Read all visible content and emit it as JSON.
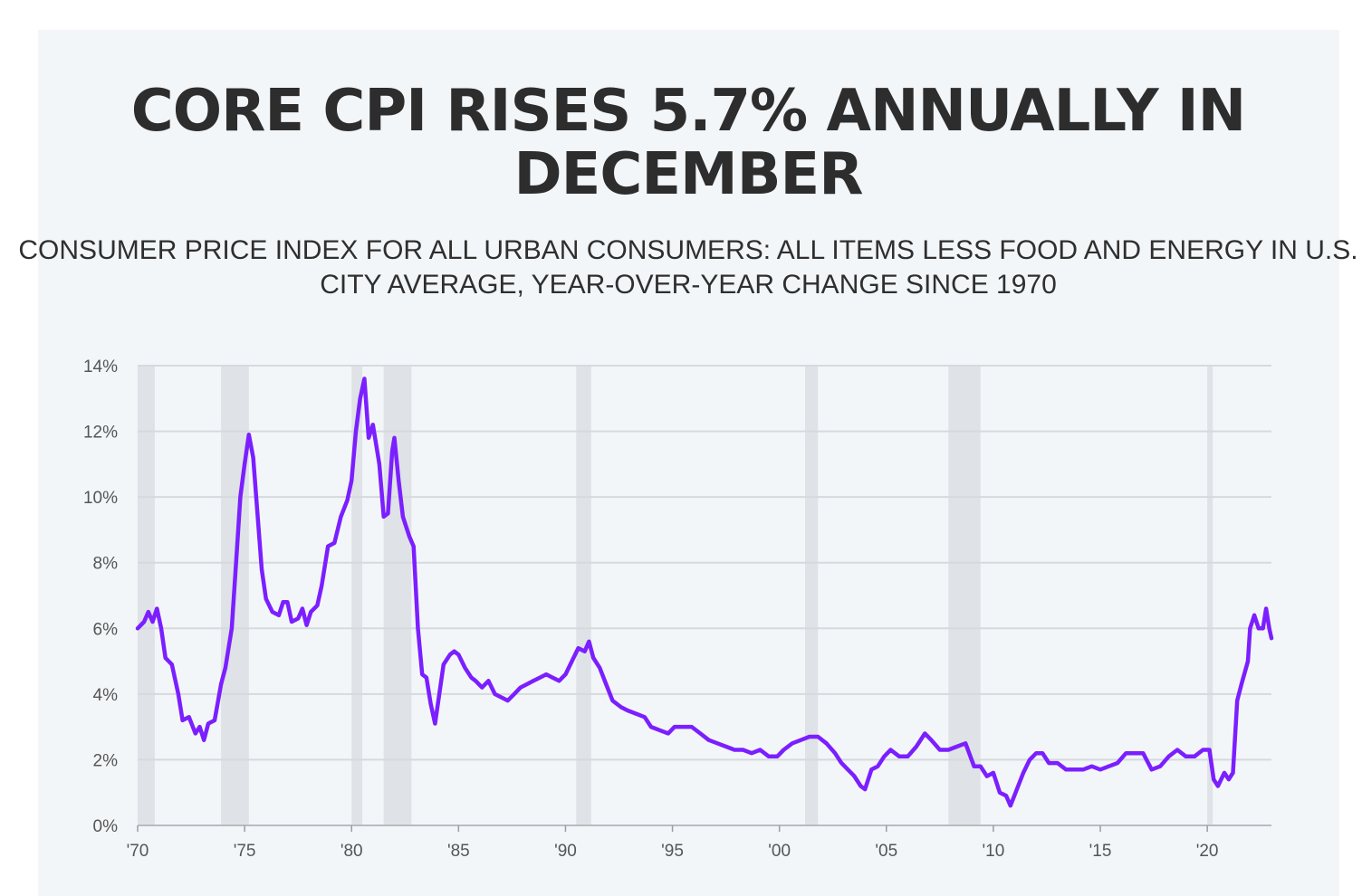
{
  "title": "CORE CPI RISES 5.7% ANNUALLY IN DECEMBER",
  "subtitle": "CONSUMER PRICE INDEX FOR ALL URBAN CONSUMERS: ALL ITEMS LESS FOOD AND ENERGY IN U.S. CITY AVERAGE, YEAR-OVER-YEAR CHANGE SINCE 1970",
  "colors": {
    "line": "#7b1fff",
    "recession": "#dfe2e6",
    "grid": "#d6d9dd",
    "background": "#f3f6f9"
  },
  "chart_data": {
    "type": "line",
    "title": "CORE CPI RISES 5.7% ANNUALLY IN DECEMBER",
    "xlabel": "",
    "ylabel": "",
    "xlim": [
      1970,
      2023
    ],
    "ylim": [
      0,
      14
    ],
    "grid": "horizontal",
    "x_ticks": [
      1970,
      1975,
      1980,
      1985,
      1990,
      1995,
      2000,
      2005,
      2010,
      2015,
      2020
    ],
    "x_tick_labels": [
      "'70",
      "'75",
      "'80",
      "'85",
      "'90",
      "'95",
      "'00",
      "'05",
      "'10",
      "'15",
      "'20"
    ],
    "y_ticks": [
      0,
      2,
      4,
      6,
      8,
      10,
      12,
      14
    ],
    "y_tick_labels": [
      "0%",
      "2%",
      "4%",
      "6%",
      "8%",
      "10%",
      "12%",
      "14%"
    ],
    "recessions": [
      [
        1970.0,
        1970.8
      ],
      [
        1973.9,
        1975.2
      ],
      [
        1980.0,
        1980.5
      ],
      [
        1981.5,
        1982.8
      ],
      [
        1990.5,
        1991.2
      ],
      [
        2001.2,
        2001.8
      ],
      [
        2007.9,
        2009.4
      ],
      [
        2020.0,
        2020.2
      ]
    ],
    "series": [
      {
        "values": [
          [
            1970.0,
            6.0
          ],
          [
            1970.3,
            6.2
          ],
          [
            1970.5,
            6.5
          ],
          [
            1970.7,
            6.2
          ],
          [
            1970.9,
            6.6
          ],
          [
            1971.1,
            6.0
          ],
          [
            1971.3,
            5.1
          ],
          [
            1971.6,
            4.9
          ],
          [
            1971.9,
            4.0
          ],
          [
            1972.1,
            3.2
          ],
          [
            1972.4,
            3.3
          ],
          [
            1972.7,
            2.8
          ],
          [
            1972.9,
            3.0
          ],
          [
            1973.1,
            2.6
          ],
          [
            1973.3,
            3.1
          ],
          [
            1973.6,
            3.2
          ],
          [
            1973.9,
            4.3
          ],
          [
            1974.1,
            4.8
          ],
          [
            1974.4,
            6.0
          ],
          [
            1974.6,
            8.0
          ],
          [
            1974.8,
            10.0
          ],
          [
            1975.0,
            11.0
          ],
          [
            1975.2,
            11.9
          ],
          [
            1975.4,
            11.2
          ],
          [
            1975.6,
            9.5
          ],
          [
            1975.8,
            7.8
          ],
          [
            1976.0,
            6.9
          ],
          [
            1976.3,
            6.5
          ],
          [
            1976.6,
            6.4
          ],
          [
            1976.8,
            6.8
          ],
          [
            1977.0,
            6.8
          ],
          [
            1977.2,
            6.2
          ],
          [
            1977.5,
            6.3
          ],
          [
            1977.7,
            6.6
          ],
          [
            1977.9,
            6.1
          ],
          [
            1978.1,
            6.5
          ],
          [
            1978.4,
            6.7
          ],
          [
            1978.6,
            7.3
          ],
          [
            1978.9,
            8.5
          ],
          [
            1979.2,
            8.6
          ],
          [
            1979.5,
            9.4
          ],
          [
            1979.8,
            9.9
          ],
          [
            1980.0,
            10.5
          ],
          [
            1980.2,
            12.0
          ],
          [
            1980.4,
            13.0
          ],
          [
            1980.6,
            13.6
          ],
          [
            1980.8,
            11.8
          ],
          [
            1981.0,
            12.2
          ],
          [
            1981.3,
            11.0
          ],
          [
            1981.5,
            9.4
          ],
          [
            1981.7,
            9.5
          ],
          [
            1981.9,
            11.4
          ],
          [
            1982.0,
            11.8
          ],
          [
            1982.2,
            10.5
          ],
          [
            1982.4,
            9.4
          ],
          [
            1982.7,
            8.8
          ],
          [
            1982.9,
            8.5
          ],
          [
            1983.1,
            6.0
          ],
          [
            1983.3,
            4.6
          ],
          [
            1983.5,
            4.5
          ],
          [
            1983.7,
            3.7
          ],
          [
            1983.9,
            3.1
          ],
          [
            1984.1,
            4.0
          ],
          [
            1984.3,
            4.9
          ],
          [
            1984.6,
            5.2
          ],
          [
            1984.8,
            5.3
          ],
          [
            1985.0,
            5.2
          ],
          [
            1985.3,
            4.8
          ],
          [
            1985.6,
            4.5
          ],
          [
            1985.8,
            4.4
          ],
          [
            1986.1,
            4.2
          ],
          [
            1986.4,
            4.4
          ],
          [
            1986.7,
            4.0
          ],
          [
            1987.0,
            3.9
          ],
          [
            1987.3,
            3.8
          ],
          [
            1987.6,
            4.0
          ],
          [
            1987.9,
            4.2
          ],
          [
            1988.2,
            4.3
          ],
          [
            1988.5,
            4.4
          ],
          [
            1988.8,
            4.5
          ],
          [
            1989.1,
            4.6
          ],
          [
            1989.4,
            4.5
          ],
          [
            1989.7,
            4.4
          ],
          [
            1990.0,
            4.6
          ],
          [
            1990.3,
            5.0
          ],
          [
            1990.6,
            5.4
          ],
          [
            1990.9,
            5.3
          ],
          [
            1991.1,
            5.6
          ],
          [
            1991.3,
            5.1
          ],
          [
            1991.6,
            4.8
          ],
          [
            1991.9,
            4.3
          ],
          [
            1992.2,
            3.8
          ],
          [
            1992.6,
            3.6
          ],
          [
            1992.9,
            3.5
          ],
          [
            1993.3,
            3.4
          ],
          [
            1993.7,
            3.3
          ],
          [
            1994.0,
            3.0
          ],
          [
            1994.4,
            2.9
          ],
          [
            1994.8,
            2.8
          ],
          [
            1995.1,
            3.0
          ],
          [
            1995.5,
            3.0
          ],
          [
            1995.9,
            3.0
          ],
          [
            1996.3,
            2.8
          ],
          [
            1996.7,
            2.6
          ],
          [
            1997.1,
            2.5
          ],
          [
            1997.5,
            2.4
          ],
          [
            1997.9,
            2.3
          ],
          [
            1998.3,
            2.3
          ],
          [
            1998.7,
            2.2
          ],
          [
            1999.1,
            2.3
          ],
          [
            1999.5,
            2.1
          ],
          [
            1999.9,
            2.1
          ],
          [
            2000.2,
            2.3
          ],
          [
            2000.6,
            2.5
          ],
          [
            2001.0,
            2.6
          ],
          [
            2001.4,
            2.7
          ],
          [
            2001.8,
            2.7
          ],
          [
            2002.2,
            2.5
          ],
          [
            2002.6,
            2.2
          ],
          [
            2002.9,
            1.9
          ],
          [
            2003.2,
            1.7
          ],
          [
            2003.5,
            1.5
          ],
          [
            2003.8,
            1.2
          ],
          [
            2004.0,
            1.1
          ],
          [
            2004.3,
            1.7
          ],
          [
            2004.6,
            1.8
          ],
          [
            2004.9,
            2.1
          ],
          [
            2005.2,
            2.3
          ],
          [
            2005.6,
            2.1
          ],
          [
            2006.0,
            2.1
          ],
          [
            2006.4,
            2.4
          ],
          [
            2006.8,
            2.8
          ],
          [
            2007.1,
            2.6
          ],
          [
            2007.5,
            2.3
          ],
          [
            2007.9,
            2.3
          ],
          [
            2008.3,
            2.4
          ],
          [
            2008.7,
            2.5
          ],
          [
            2009.1,
            1.8
          ],
          [
            2009.4,
            1.8
          ],
          [
            2009.7,
            1.5
          ],
          [
            2010.0,
            1.6
          ],
          [
            2010.3,
            1.0
          ],
          [
            2010.6,
            0.9
          ],
          [
            2010.8,
            0.6
          ],
          [
            2011.1,
            1.1
          ],
          [
            2011.4,
            1.6
          ],
          [
            2011.7,
            2.0
          ],
          [
            2012.0,
            2.2
          ],
          [
            2012.3,
            2.2
          ],
          [
            2012.6,
            1.9
          ],
          [
            2013.0,
            1.9
          ],
          [
            2013.4,
            1.7
          ],
          [
            2013.8,
            1.7
          ],
          [
            2014.2,
            1.7
          ],
          [
            2014.6,
            1.8
          ],
          [
            2015.0,
            1.7
          ],
          [
            2015.4,
            1.8
          ],
          [
            2015.8,
            1.9
          ],
          [
            2016.2,
            2.2
          ],
          [
            2016.6,
            2.2
          ],
          [
            2017.0,
            2.2
          ],
          [
            2017.4,
            1.7
          ],
          [
            2017.8,
            1.8
          ],
          [
            2018.2,
            2.1
          ],
          [
            2018.6,
            2.3
          ],
          [
            2019.0,
            2.1
          ],
          [
            2019.4,
            2.1
          ],
          [
            2019.8,
            2.3
          ],
          [
            2020.1,
            2.3
          ],
          [
            2020.3,
            1.4
          ],
          [
            2020.5,
            1.2
          ],
          [
            2020.8,
            1.6
          ],
          [
            2021.0,
            1.4
          ],
          [
            2021.2,
            1.6
          ],
          [
            2021.4,
            3.8
          ],
          [
            2021.6,
            4.3
          ],
          [
            2021.9,
            5.0
          ],
          [
            2022.0,
            6.0
          ],
          [
            2022.2,
            6.4
          ],
          [
            2022.4,
            6.0
          ],
          [
            2022.6,
            6.0
          ],
          [
            2022.75,
            6.6
          ],
          [
            2022.9,
            6.0
          ],
          [
            2023.0,
            5.7
          ]
        ]
      }
    ]
  }
}
